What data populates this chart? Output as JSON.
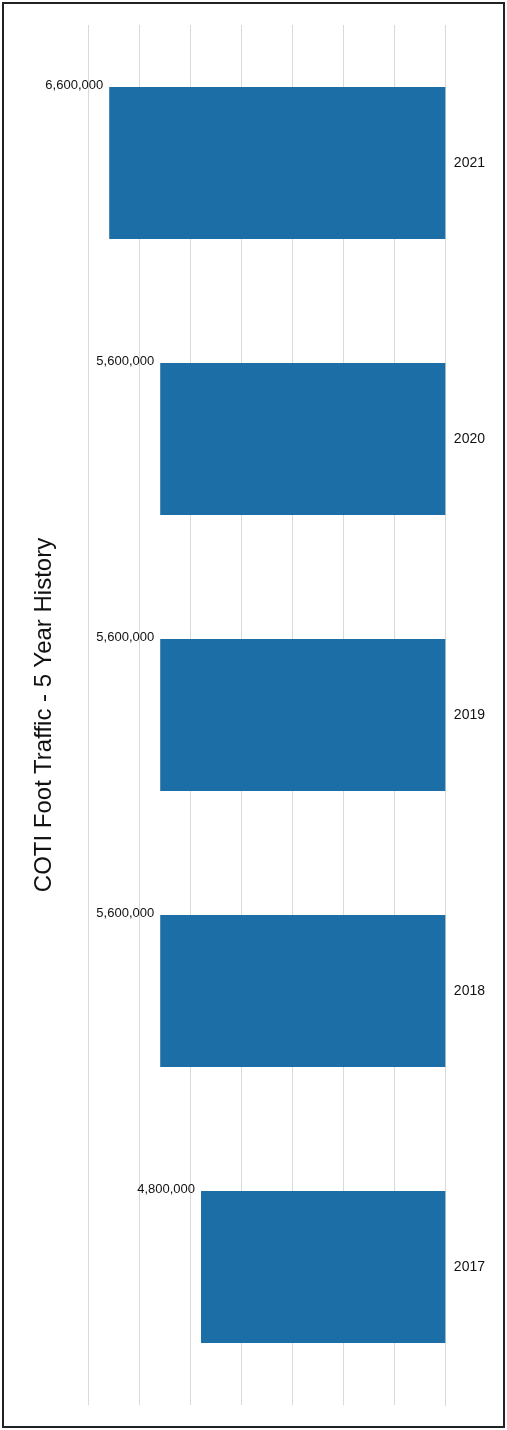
{
  "chart_data": {
    "type": "bar",
    "title": "COTI Foot Traffic - 5 Year History",
    "orientation": "horizontal",
    "categories": [
      "2021",
      "2020",
      "2019",
      "2018",
      "2017"
    ],
    "values": [
      6600000,
      5600000,
      5600000,
      5600000,
      4800000
    ],
    "value_labels": [
      "6,600,000",
      "5,600,000",
      "5,600,000",
      "5,600,000",
      "4,800,000"
    ],
    "color": "#1b6fa6",
    "grid": "x",
    "tick_labels": "y",
    "legend": false
  }
}
